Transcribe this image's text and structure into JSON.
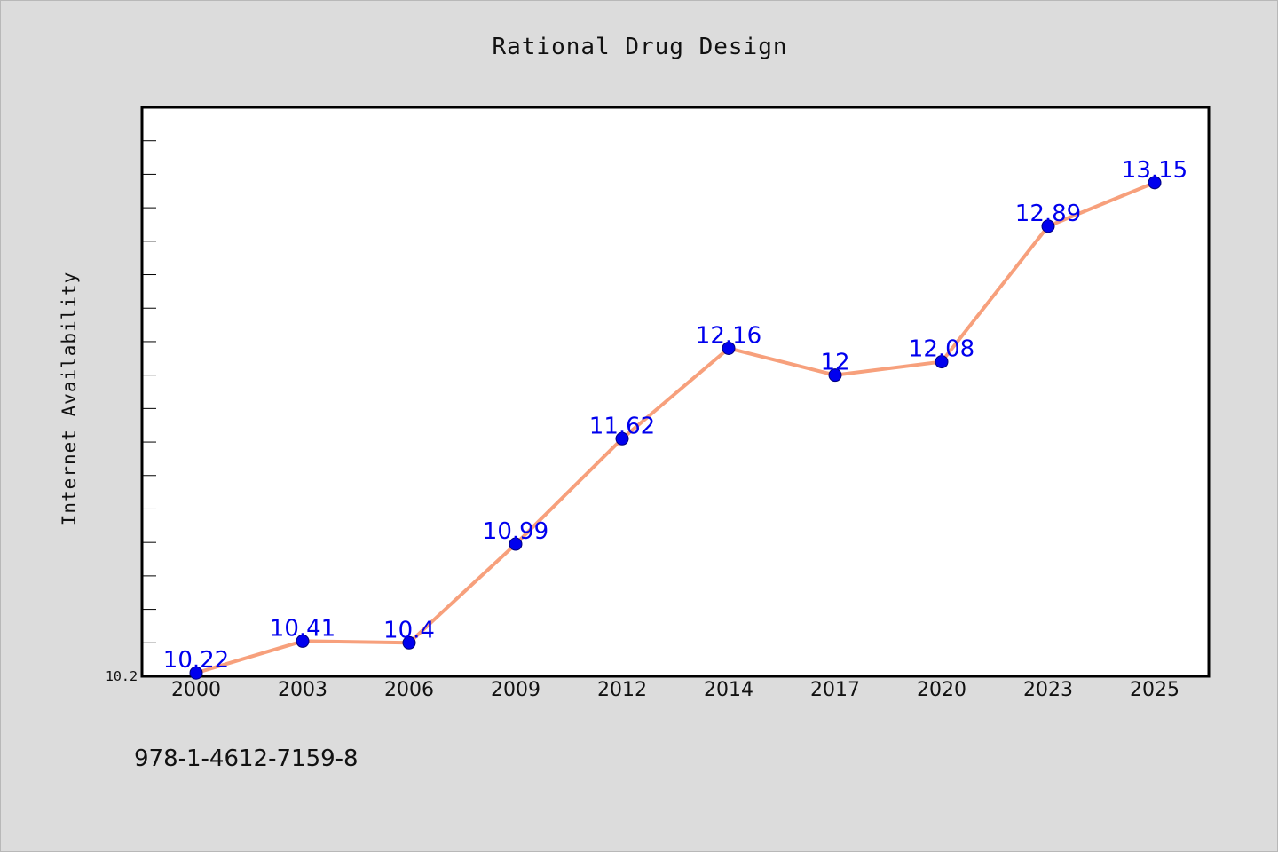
{
  "chart_data": {
    "type": "line",
    "title": "Rational Drug Design",
    "xlabel": "",
    "ylabel": "Internet Availability",
    "categories": [
      "2000",
      "2003",
      "2006",
      "2009",
      "2012",
      "2014",
      "2017",
      "2020",
      "2023",
      "2025"
    ],
    "series": [
      {
        "values": [
          10.22,
          10.41,
          10.4,
          10.99,
          11.62,
          12.16,
          12.0,
          12.08,
          12.89,
          13.15
        ],
        "data_labels": [
          "10.22",
          "10.41",
          "10.4",
          "10.99",
          "11.62",
          "12.16",
          "12",
          "12.08",
          "12.89",
          "13.15"
        ],
        "line_color": "#f7a07c",
        "marker_color": "#0000ee"
      }
    ],
    "y_tick_labels": [
      "10.2"
    ],
    "ylim": [
      10.2,
      13.6
    ],
    "y_minor_tick_step": 0.2,
    "grid": false,
    "legend": "none"
  },
  "footer": {
    "text": "978-1-4612-7159-8"
  }
}
